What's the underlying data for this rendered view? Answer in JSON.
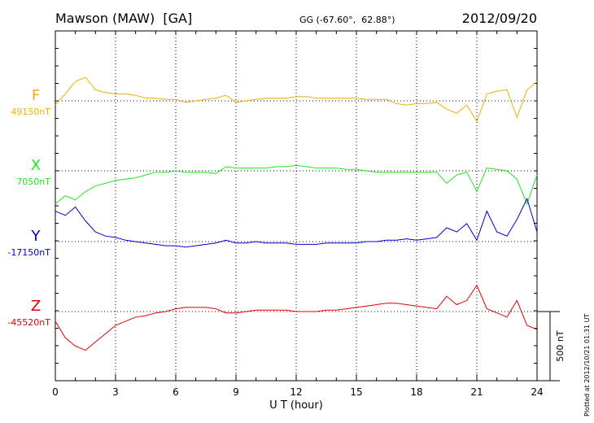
{
  "chart_data": {
    "type": "line",
    "title": "Mawson (MAW)  [GA]",
    "subtitle": "GG (-67.60°,  62.88°)",
    "date": "2012/09/20",
    "xlabel": "U T (hour)",
    "footnote": "Plotted at 2012/10/21 01:31 UT",
    "xlim": [
      0,
      24
    ],
    "xticks": [
      0,
      3,
      6,
      9,
      12,
      15,
      18,
      21,
      24
    ],
    "grid": true,
    "scale_bar": {
      "value": 500,
      "label": "500 nT"
    },
    "x": [
      0,
      0.5,
      1,
      1.5,
      2,
      2.5,
      3,
      3.5,
      4,
      4.5,
      5,
      5.5,
      6,
      6.5,
      7,
      7.5,
      8,
      8.5,
      9,
      9.5,
      10,
      10.5,
      11,
      11.5,
      12,
      12.5,
      13,
      13.5,
      14,
      14.5,
      15,
      15.5,
      16,
      16.5,
      17,
      17.5,
      18,
      18.5,
      19,
      19.5,
      20,
      20.5,
      21,
      21.5,
      22,
      22.5,
      23,
      23.5,
      24
    ],
    "series": [
      {
        "name": "F",
        "color": "#f2ad0a",
        "baseline": 49150,
        "baseline_label": "49150nT",
        "values": [
          49120,
          49200,
          49290,
          49320,
          49230,
          49210,
          49200,
          49200,
          49190,
          49170,
          49170,
          49160,
          49160,
          49140,
          49150,
          49160,
          49170,
          49190,
          49140,
          49150,
          49160,
          49170,
          49170,
          49170,
          49180,
          49180,
          49170,
          49170,
          49170,
          49170,
          49170,
          49160,
          49160,
          49160,
          49130,
          49120,
          49130,
          49130,
          49140,
          49090,
          49060,
          49120,
          49000,
          49200,
          49220,
          49230,
          49030,
          49230,
          49290
        ]
      },
      {
        "name": "X",
        "color": "#1ee61e",
        "baseline": 7050,
        "baseline_label": "7050nT",
        "values": [
          6810,
          6870,
          6840,
          6900,
          6940,
          6960,
          6980,
          6990,
          7000,
          7020,
          7040,
          7040,
          7050,
          7040,
          7040,
          7040,
          7030,
          7080,
          7070,
          7070,
          7070,
          7070,
          7080,
          7080,
          7090,
          7080,
          7070,
          7070,
          7070,
          7060,
          7060,
          7050,
          7040,
          7040,
          7040,
          7040,
          7040,
          7040,
          7040,
          6960,
          7020,
          7040,
          6900,
          7070,
          7060,
          7050,
          6990,
          6810,
          7020
        ]
      },
      {
        "name": "Y",
        "color": "#0000cc",
        "baseline": -17150,
        "baseline_label": "-17150nT",
        "values": [
          -16930,
          -16960,
          -16900,
          -17000,
          -17080,
          -17110,
          -17120,
          -17140,
          -17150,
          -17160,
          -17170,
          -17180,
          -17180,
          -17190,
          -17180,
          -17170,
          -17160,
          -17140,
          -17160,
          -17160,
          -17150,
          -17160,
          -17160,
          -17160,
          -17170,
          -17170,
          -17170,
          -17160,
          -17160,
          -17160,
          -17160,
          -17150,
          -17150,
          -17140,
          -17140,
          -17130,
          -17140,
          -17130,
          -17120,
          -17050,
          -17080,
          -17020,
          -17140,
          -16930,
          -17080,
          -17110,
          -16990,
          -16840,
          -17080
        ]
      },
      {
        "name": "Z",
        "color": "#e00000",
        "baseline": -45520,
        "baseline_label": "-45520nT",
        "values": [
          -45590,
          -45710,
          -45770,
          -45800,
          -45740,
          -45680,
          -45620,
          -45590,
          -45560,
          -45550,
          -45530,
          -45520,
          -45500,
          -45490,
          -45490,
          -45490,
          -45500,
          -45530,
          -45530,
          -45520,
          -45510,
          -45510,
          -45510,
          -45510,
          -45520,
          -45520,
          -45520,
          -45510,
          -45510,
          -45500,
          -45490,
          -45480,
          -45470,
          -45460,
          -45460,
          -45470,
          -45480,
          -45490,
          -45500,
          -45410,
          -45470,
          -45440,
          -45330,
          -45500,
          -45530,
          -45560,
          -45440,
          -45620,
          -45650
        ]
      }
    ]
  }
}
